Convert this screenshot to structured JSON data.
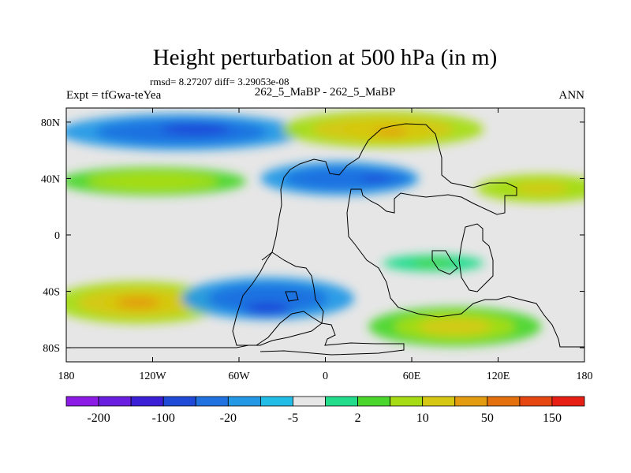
{
  "chart_data": {
    "type": "heatmap",
    "title": "Height perturbation at 500 hPa (in m)",
    "stats_text": "rmsd= 8.27207 diff= 3.29053e-08",
    "left_label": "Expt = tfGwa-teYea",
    "center_label": "262_5_MaBP - 262_5_MaBP",
    "right_label": "ANN",
    "xlabel": "",
    "ylabel": "",
    "xlim": [
      -180,
      180
    ],
    "ylim": [
      -90,
      90
    ],
    "x_ticks": [
      {
        "value": -180,
        "label": "180"
      },
      {
        "value": -120,
        "label": "120W"
      },
      {
        "value": -60,
        "label": "60W"
      },
      {
        "value": 0,
        "label": "0"
      },
      {
        "value": 60,
        "label": "60E"
      },
      {
        "value": 120,
        "label": "120E"
      },
      {
        "value": 180,
        "label": "180"
      }
    ],
    "y_ticks": [
      {
        "value": 80,
        "label": "80N"
      },
      {
        "value": 40,
        "label": "40N"
      },
      {
        "value": 0,
        "label": "0"
      },
      {
        "value": -40,
        "label": "40S"
      },
      {
        "value": -80,
        "label": "80S"
      }
    ],
    "colorbar": {
      "colors": [
        "#8c1be6",
        "#6a1fe0",
        "#3b1fd6",
        "#1f4ad8",
        "#1f72e0",
        "#2399e6",
        "#22bde6",
        "#e6e6e6",
        "#22dc8c",
        "#4bd62b",
        "#a6dc14",
        "#d6c812",
        "#e39c0f",
        "#e3700d",
        "#e64610",
        "#e61e14"
      ],
      "tick_labels": [
        "-200",
        "-100",
        "-20",
        "-5",
        "2",
        "10",
        "50",
        "150"
      ],
      "missing": "#e6e6e6"
    },
    "fields": [
      {
        "name": "north-polar-blue-band",
        "lon": -100,
        "lat": 73,
        "lon_radius": 85,
        "lat_radius": 13,
        "value": -40
      },
      {
        "name": "north-west-blue-core",
        "lon": -90,
        "lat": 75,
        "lon_radius": 35,
        "lat_radius": 6,
        "value": -70
      },
      {
        "name": "north-polar-positive",
        "lon": 40,
        "lat": 75,
        "lon_radius": 70,
        "lat_radius": 13,
        "value": 30
      },
      {
        "name": "north-polar-positive-core",
        "lon": 45,
        "lat": 73,
        "lon_radius": 28,
        "lat_radius": 6,
        "value": 60
      },
      {
        "name": "midlat-west-positive",
        "lon": -120,
        "lat": 38,
        "lon_radius": 65,
        "lat_radius": 10,
        "value": 15
      },
      {
        "name": "midlat-central-negative",
        "lon": 10,
        "lat": 40,
        "lon_radius": 55,
        "lat_radius": 12,
        "value": -30
      },
      {
        "name": "midlat-central-negative-core",
        "lon": 35,
        "lat": 40,
        "lon_radius": 25,
        "lat_radius": 6,
        "value": -60
      },
      {
        "name": "midlat-east-positive",
        "lon": 150,
        "lat": 33,
        "lon_radius": 45,
        "lat_radius": 10,
        "value": 25
      },
      {
        "name": "south-west-positive",
        "lon": -130,
        "lat": -48,
        "lon_radius": 60,
        "lat_radius": 15,
        "value": 35
      },
      {
        "name": "south-west-positive-core",
        "lon": -130,
        "lat": -48,
        "lon_radius": 22,
        "lat_radius": 6,
        "value": 80
      },
      {
        "name": "south-central-negative",
        "lon": -40,
        "lat": -45,
        "lon_radius": 60,
        "lat_radius": 15,
        "value": -30
      },
      {
        "name": "south-central-negative-core",
        "lon": -40,
        "lat": -52,
        "lon_radius": 22,
        "lat_radius": 6,
        "value": -70
      },
      {
        "name": "south-east-positive",
        "lon": 90,
        "lat": -65,
        "lon_radius": 60,
        "lat_radius": 14,
        "value": 20
      },
      {
        "name": "tropical-east-positive",
        "lon": 75,
        "lat": -20,
        "lon_radius": 35,
        "lat_radius": 6,
        "value": 6
      }
    ]
  }
}
